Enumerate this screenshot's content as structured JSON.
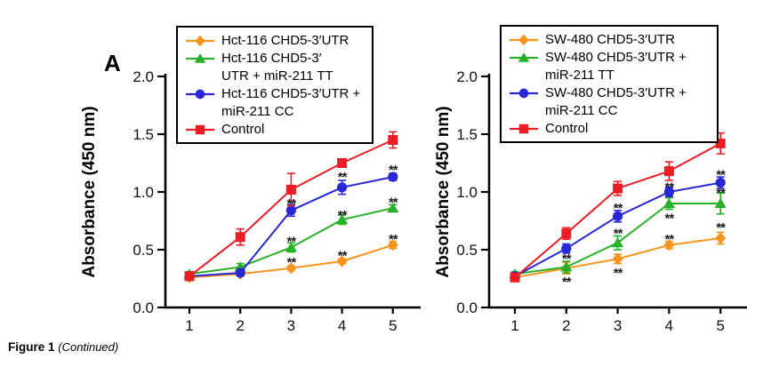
{
  "panel_label": "A",
  "caption": {
    "bold": "Figure 1",
    "italic": "(Continued)"
  },
  "colors": {
    "orange": "#F7941E",
    "green": "#29B029",
    "blue": "#2727D7",
    "red": "#EC1C24",
    "axis": "#000000",
    "significance": "#1a1a1a"
  },
  "chart_data": [
    {
      "type": "line",
      "title": "",
      "xlabel": "",
      "ylabel": "Absorbance (450 nm)",
      "x": [
        1,
        2,
        3,
        4,
        5
      ],
      "xtick_labels": [
        "1",
        "2",
        "3",
        "4",
        "5"
      ],
      "ylim": [
        0.0,
        2.0
      ],
      "yticks": [
        0.0,
        0.5,
        1.0,
        1.5,
        2.0
      ],
      "ytick_labels": [
        "0.0",
        "0.5",
        "1.0",
        "1.5",
        "2.0"
      ],
      "grid": false,
      "legend_position": "top-right-outside-box",
      "series": [
        {
          "name": "Hct-116 CHD5-3′UTR",
          "legend_lines": [
            "Hct-116 CHD5-3′UTR"
          ],
          "color": "orange",
          "marker": "diamond",
          "values": [
            0.26,
            0.29,
            0.34,
            0.4,
            0.54
          ],
          "errors": [
            0.015,
            0.015,
            0.02,
            0.02,
            0.03
          ]
        },
        {
          "name": "Hct-116 CHD5-3′UTR + miR-211 TT",
          "legend_lines": [
            "Hct-116 CHD5-3′",
            "UTR + miR-211 TT"
          ],
          "color": "green",
          "marker": "triangle",
          "values": [
            0.29,
            0.35,
            0.52,
            0.76,
            0.86
          ],
          "errors": [
            0.02,
            0.03,
            0.04,
            0.04,
            0.03
          ]
        },
        {
          "name": "Hct-116 CHD5-3′UTR + miR-211 CC",
          "legend_lines": [
            "Hct-116 CHD5-3′UTR +",
            "miR-211 CC"
          ],
          "color": "blue",
          "marker": "circle",
          "values": [
            0.27,
            0.3,
            0.84,
            1.04,
            1.13
          ],
          "errors": [
            0.02,
            0.02,
            0.05,
            0.06,
            0.03
          ]
        },
        {
          "name": "Control",
          "legend_lines": [
            "Control"
          ],
          "color": "red",
          "marker": "square",
          "values": [
            0.27,
            0.61,
            1.02,
            1.25,
            1.45
          ],
          "errors": [
            0.03,
            0.07,
            0.14,
            0.03,
            0.07
          ]
        }
      ],
      "annotations": [
        {
          "x": 3,
          "y": 0.94,
          "text": "**"
        },
        {
          "x": 4,
          "y": 1.17,
          "text": "**"
        },
        {
          "x": 5,
          "y": 1.23,
          "text": "**"
        },
        {
          "x": 3,
          "y": 0.61,
          "text": "**"
        },
        {
          "x": 4,
          "y": 0.84,
          "text": "**"
        },
        {
          "x": 5,
          "y": 0.95,
          "text": "**"
        },
        {
          "x": 3,
          "y": 0.43,
          "text": "**"
        },
        {
          "x": 4,
          "y": 0.49,
          "text": "**"
        },
        {
          "x": 5,
          "y": 0.63,
          "text": "**"
        }
      ]
    },
    {
      "type": "line",
      "title": "",
      "xlabel": "",
      "ylabel": "Absorbance (450 nm)",
      "x": [
        1,
        2,
        3,
        4,
        5
      ],
      "xtick_labels": [
        "1",
        "2",
        "3",
        "4",
        "5"
      ],
      "ylim": [
        0.0,
        2.0
      ],
      "yticks": [
        0.0,
        0.5,
        1.0,
        1.5,
        2.0
      ],
      "ytick_labels": [
        "0.0",
        "0.5",
        "1.0",
        "1.5",
        "2.0"
      ],
      "grid": false,
      "legend_position": "top-right-outside-box",
      "series": [
        {
          "name": "SW-480 CHD5-3′UTR",
          "legend_lines": [
            "SW-480 CHD5-3′UTR"
          ],
          "color": "orange",
          "marker": "diamond",
          "values": [
            0.26,
            0.34,
            0.42,
            0.54,
            0.6
          ],
          "errors": [
            0.015,
            0.05,
            0.04,
            0.03,
            0.05
          ]
        },
        {
          "name": "SW-480 CHD5-3′UTR + miR-211 TT",
          "legend_lines": [
            "SW-480 CHD5-3′UTR +",
            "miR-211 TT"
          ],
          "color": "green",
          "marker": "triangle",
          "values": [
            0.29,
            0.35,
            0.56,
            0.9,
            0.9
          ],
          "errors": [
            0.02,
            0.05,
            0.06,
            0.05,
            0.09
          ]
        },
        {
          "name": "SW-480 CHD5-3′UTR + miR-211 CC",
          "legend_lines": [
            "SW-480 CHD5-3′UTR +",
            "miR-211 CC"
          ],
          "color": "blue",
          "marker": "circle",
          "values": [
            0.27,
            0.51,
            0.79,
            1.0,
            1.08
          ],
          "errors": [
            0.02,
            0.04,
            0.05,
            0.04,
            0.05
          ]
        },
        {
          "name": "Control",
          "legend_lines": [
            "Control"
          ],
          "color": "red",
          "marker": "square",
          "values": [
            0.26,
            0.64,
            1.03,
            1.18,
            1.42
          ],
          "errors": [
            0.03,
            0.05,
            0.06,
            0.08,
            0.09
          ]
        }
      ],
      "annotations": [
        {
          "x": 2,
          "y": 0.46,
          "text": "**"
        },
        {
          "x": 3,
          "y": 0.9,
          "text": "**"
        },
        {
          "x": 4,
          "y": 1.08,
          "text": "**"
        },
        {
          "x": 5,
          "y": 1.19,
          "text": "**"
        },
        {
          "x": 2,
          "y": 0.26,
          "text": "**"
        },
        {
          "x": 3,
          "y": 0.68,
          "text": "**"
        },
        {
          "x": 4,
          "y": 0.81,
          "text": "**"
        },
        {
          "x": 5,
          "y": 1.03,
          "text": "**"
        },
        {
          "x": 3,
          "y": 0.34,
          "text": "**"
        },
        {
          "x": 4,
          "y": 0.63,
          "text": "**"
        },
        {
          "x": 5,
          "y": 0.73,
          "text": "**"
        }
      ]
    }
  ]
}
